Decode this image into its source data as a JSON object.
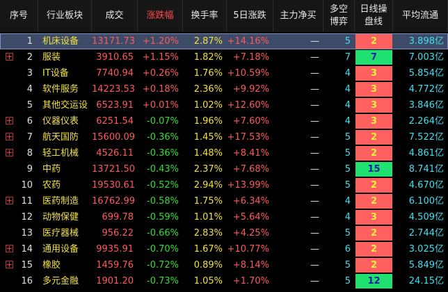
{
  "table": {
    "headers": [
      "序号",
      "行业板块",
      "成交",
      "涨跌幅",
      "换手率",
      "5日涨跌",
      "主力净买",
      "多空\n博弈",
      "日线操\n盘线",
      "平均流通"
    ],
    "highlight_header": 3,
    "selected_row": 0,
    "rows": [
      {
        "no": "1",
        "name": "机床设备",
        "volume": "13171.73",
        "change": "+1.20%",
        "turnover": "2.87%",
        "change5": "+14.16%",
        "net": "—",
        "game": "5",
        "line": "2",
        "line_color": "red",
        "float": "3.898亿",
        "expandable": false
      },
      {
        "no": "2",
        "name": "服装",
        "volume": "3910.65",
        "change": "+1.15%",
        "turnover": "1.82%",
        "change5": "+7.18%",
        "net": "—",
        "game": "7",
        "line": "7",
        "line_color": "green",
        "float": "7.003亿",
        "expandable": true
      },
      {
        "no": "3",
        "name": "IT设备",
        "volume": "7740.94",
        "change": "+0.26%",
        "turnover": "1.76%",
        "change5": "+10.59%",
        "net": "—",
        "game": "4",
        "line": "3",
        "line_color": "red",
        "float": "5.854亿",
        "expandable": false
      },
      {
        "no": "4",
        "name": "软件服务",
        "volume": "14223.53",
        "change": "+0.18%",
        "turnover": "2.36%",
        "change5": "+9.92%",
        "net": "—",
        "game": "4",
        "line": "3",
        "line_color": "red",
        "float": "4.772亿",
        "expandable": false
      },
      {
        "no": "5",
        "name": "其他交运设",
        "volume": "6523.91",
        "change": "+0.01%",
        "turnover": "1.02%",
        "change5": "+12.60%",
        "net": "—",
        "game": "4",
        "line": "3",
        "line_color": "red",
        "float": "3.846亿",
        "expandable": false
      },
      {
        "no": "6",
        "name": "仪器仪表",
        "volume": "6251.54",
        "change": "-0.07%",
        "turnover": "1.96%",
        "change5": "+7.60%",
        "net": "—",
        "game": "4",
        "line": "3",
        "line_color": "red",
        "float": "2.264亿",
        "expandable": true
      },
      {
        "no": "7",
        "name": "航天国防",
        "volume": "15600.09",
        "change": "-0.36%",
        "turnover": "1.45%",
        "change5": "+17.53%",
        "net": "—",
        "game": "5",
        "line": "2",
        "line_color": "red",
        "float": "7.522亿",
        "expandable": true
      },
      {
        "no": "8",
        "name": "轻工机械",
        "volume": "4526.11",
        "change": "-0.36%",
        "turnover": "1.48%",
        "change5": "+8.41%",
        "net": "—",
        "game": "5",
        "line": "2",
        "line_color": "red",
        "float": "4.861亿",
        "expandable": true
      },
      {
        "no": "9",
        "name": "中药",
        "volume": "13721.50",
        "change": "-0.43%",
        "turnover": "2.37%",
        "change5": "+7.68%",
        "net": "—",
        "game": "5",
        "line": "15",
        "line_color": "green",
        "float": "8.741亿",
        "expandable": false
      },
      {
        "no": "10",
        "name": "农药",
        "volume": "19530.61",
        "change": "-0.52%",
        "turnover": "2.94%",
        "change5": "+13.99%",
        "net": "—",
        "game": "5",
        "line": "2",
        "line_color": "red",
        "float": "4.670亿",
        "expandable": false
      },
      {
        "no": "11",
        "name": "医药制造",
        "volume": "16762.99",
        "change": "-0.58%",
        "turnover": "1.75%",
        "change5": "+6.34%",
        "net": "—",
        "game": "4",
        "line": "2",
        "line_color": "red",
        "float": "6.100亿",
        "expandable": true
      },
      {
        "no": "12",
        "name": "动物保健",
        "volume": "699.78",
        "change": "-0.59%",
        "turnover": "1.01%",
        "change5": "+5.64%",
        "net": "—",
        "game": "4",
        "line": "3",
        "line_color": "red",
        "float": "4.509亿",
        "expandable": false
      },
      {
        "no": "13",
        "name": "医疗器械",
        "volume": "956.22",
        "change": "-0.66%",
        "turnover": "2.83%",
        "change5": "+4.25%",
        "net": "—",
        "game": "5",
        "line": "2",
        "line_color": "red",
        "float": "2.744亿",
        "expandable": false
      },
      {
        "no": "14",
        "name": "通用设备",
        "volume": "9935.91",
        "change": "-0.70%",
        "turnover": "1.67%",
        "change5": "+10.77%",
        "net": "—",
        "game": "6",
        "line": "2",
        "line_color": "red",
        "float": "3.025亿",
        "expandable": true
      },
      {
        "no": "15",
        "name": "橡胶",
        "volume": "1459.76",
        "change": "-0.72%",
        "turnover": "0.89%",
        "change5": "+8.14%",
        "net": "—",
        "game": "5",
        "line": "2",
        "line_color": "red",
        "float": "5.849亿",
        "expandable": true
      },
      {
        "no": "16",
        "name": "多元金融",
        "volume": "1901.20",
        "change": "-0.73%",
        "turnover": "1.05%",
        "change5": "+1.70%",
        "net": "—",
        "game": "5",
        "line": "12",
        "line_color": "green",
        "float": "24.15亿",
        "expandable": false
      }
    ]
  }
}
